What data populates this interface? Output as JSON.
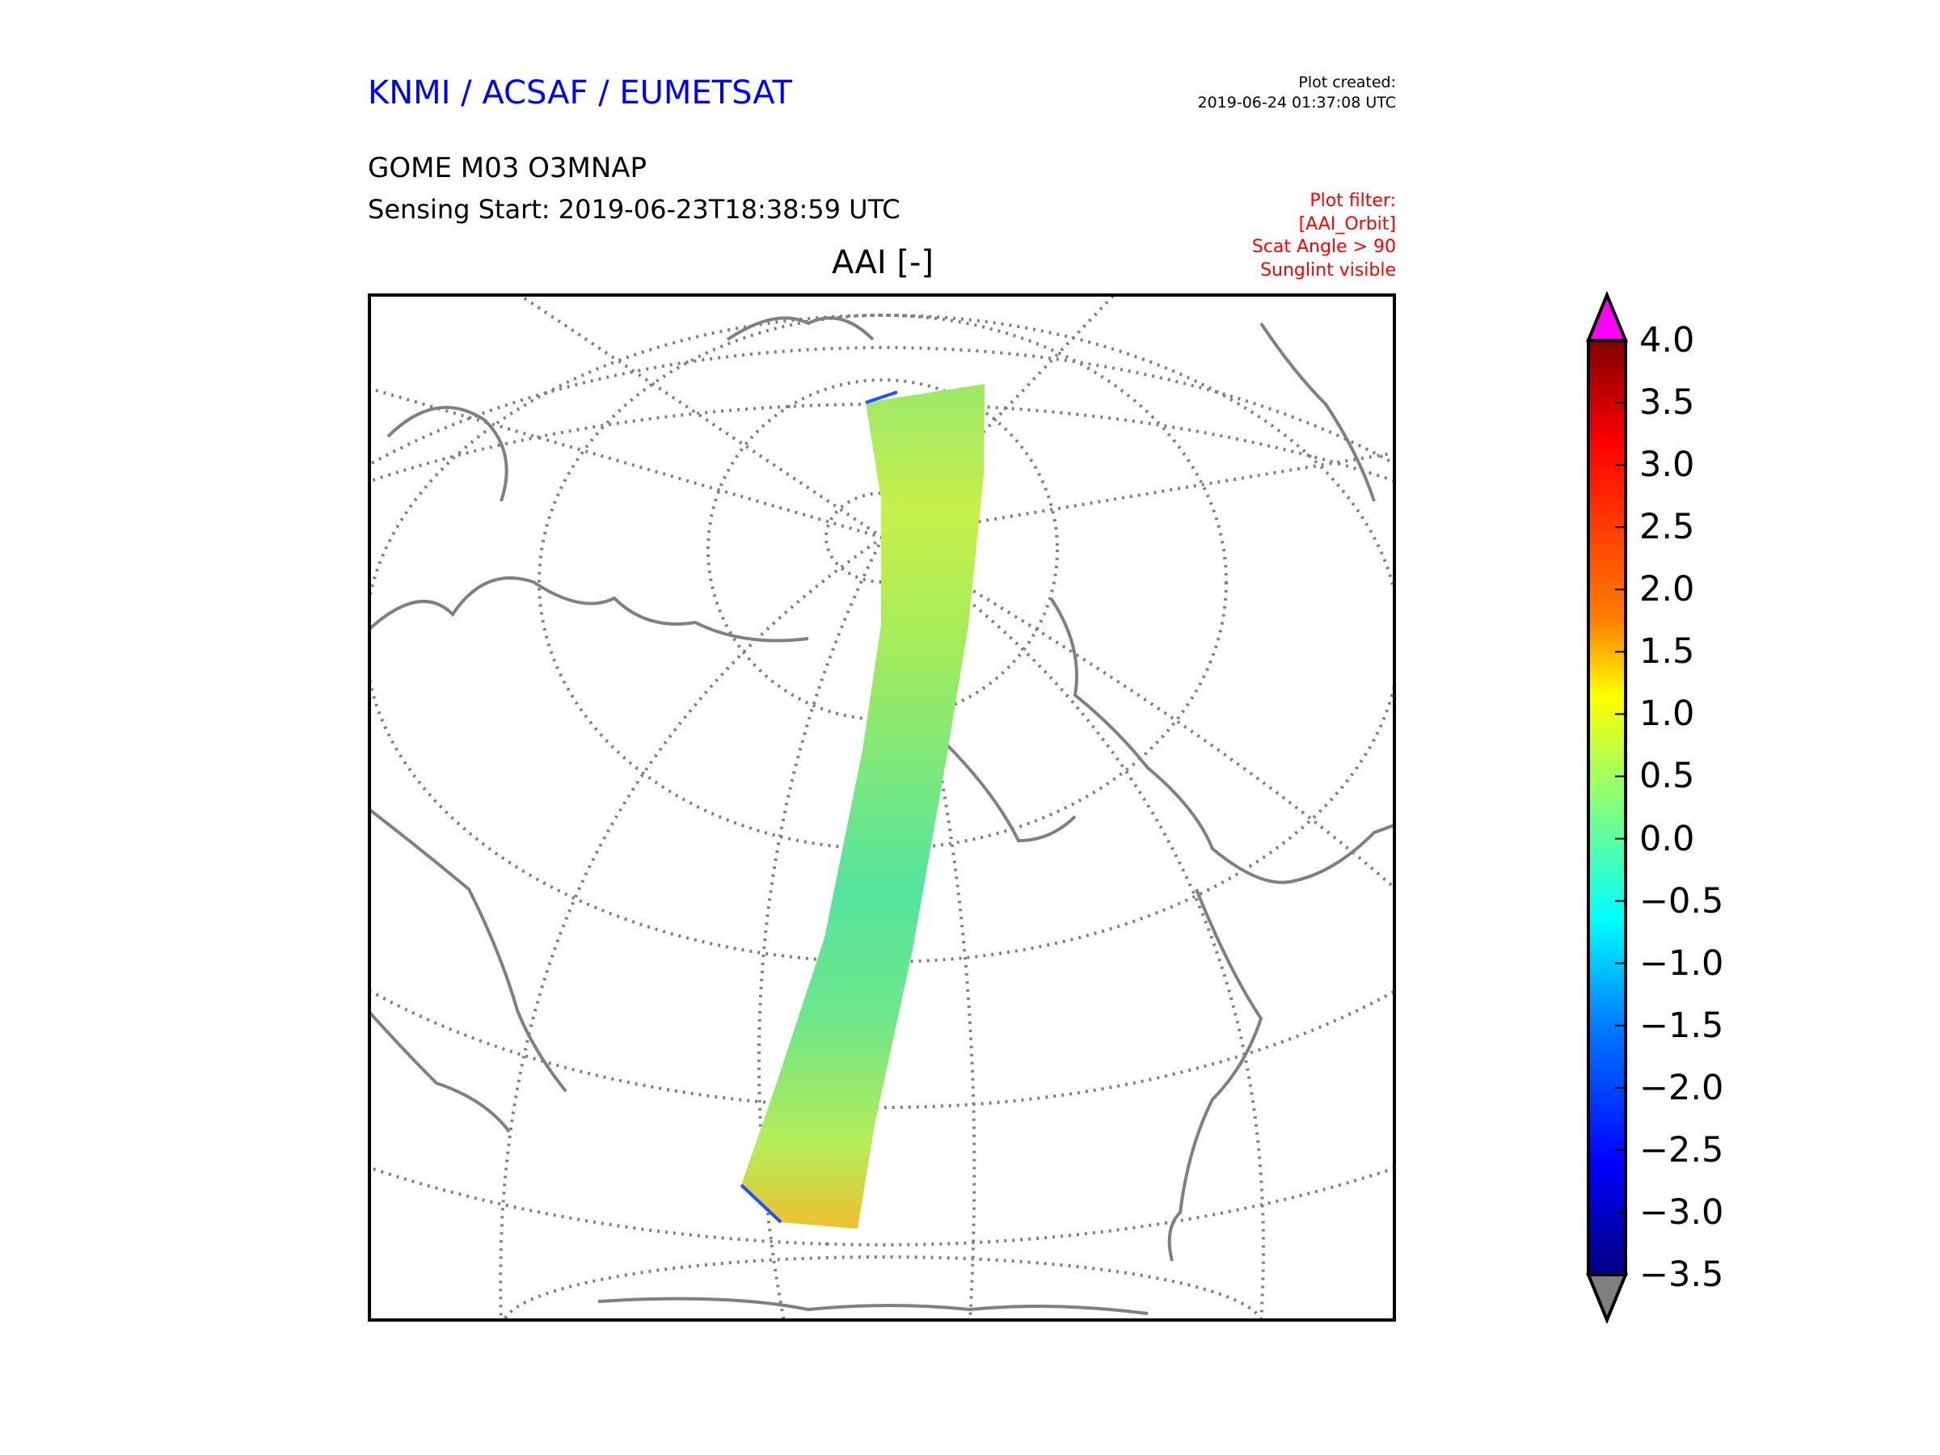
{
  "header": {
    "brand": "KNMI / ACSAF / EUMETSAT",
    "created_label": "Plot created:",
    "created_time": "2019-06-24 01:37:08 UTC",
    "product": "GOME M03 O3MNAP",
    "sensing_start": "Sensing Start: 2019-06-23T18:38:59 UTC"
  },
  "filter": {
    "lines": [
      "Plot filter:",
      "[AAI_Orbit]",
      "Scat Angle > 90",
      "Sunglint visible"
    ]
  },
  "colors": {
    "brand": "#0000ff",
    "filter": "#ff0000",
    "coast": "#808080",
    "over": "#ff00ff",
    "under": "#808080"
  },
  "chart_data": {
    "type": "heatmap",
    "title": "AAI [-]",
    "projection": "orthographic / north polar view",
    "description_values": "satellite swath of Absorbing Aerosol Index values, mostly -1.0 to 1.5",
    "colorbar": {
      "min": -3.5,
      "max": 4.0,
      "colormap": "jet",
      "extend": "both",
      "tick_values": [
        4.0,
        3.5,
        3.0,
        2.5,
        2.0,
        1.5,
        1.0,
        0.5,
        0.0,
        -0.5,
        -1.0,
        -1.5,
        -2.0,
        -2.5,
        -3.0,
        -3.5
      ],
      "tick_labels": [
        "4.0",
        "3.5",
        "3.0",
        "2.5",
        "2.0",
        "1.5",
        "1.0",
        "0.5",
        "0.0",
        "−0.5",
        "−1.0",
        "−1.5",
        "−2.0",
        "−2.5",
        "−3.0",
        "−3.5"
      ]
    }
  }
}
